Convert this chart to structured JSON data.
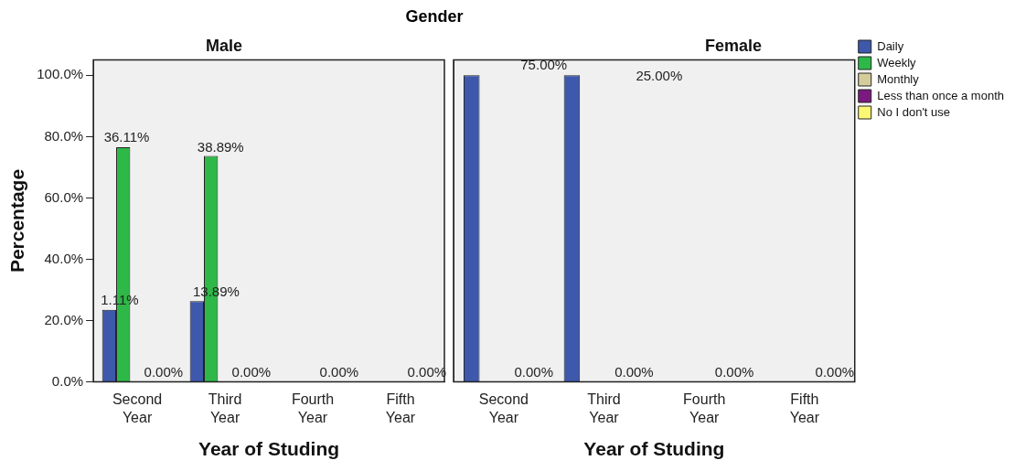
{
  "chart_data": [
    {
      "type": "bar",
      "subtitle": "Gender",
      "title": "Male",
      "xlabel": "Year of Studing",
      "ylabel": "Percentage",
      "categories": [
        "Second Year",
        "Third Year",
        "Fourth Year",
        "Fifth Year"
      ],
      "ylim": [
        0,
        105
      ],
      "yticks": [
        {
          "value": 0,
          "label": "0.0%"
        },
        {
          "value": 20,
          "label": "20.0%"
        },
        {
          "value": 40,
          "label": "40.0%"
        },
        {
          "value": 60,
          "label": "60.0%"
        },
        {
          "value": 80,
          "label": "80.0%"
        },
        {
          "value": 100,
          "label": "100.0%"
        }
      ],
      "grid": false,
      "legend": false,
      "series": [
        {
          "color": "#3e58ac",
          "values": [
            23.5,
            26.3,
            null,
            null
          ]
        },
        {
          "color": "#2eb848",
          "values": [
            76.5,
            73.7,
            null,
            null
          ]
        },
        {
          "color": "#d4cc9a",
          "values": [
            null,
            null,
            null,
            null
          ]
        },
        {
          "color": "#7b1a7e",
          "values": [
            null,
            null,
            null,
            null
          ]
        },
        {
          "color": "#fbf873",
          "values": [
            0,
            0,
            0,
            0
          ]
        }
      ],
      "annotations": [
        "1.11%",
        "36.11%",
        "0.00%",
        "13.89%",
        "38.89%",
        "0.00%",
        "0.00%",
        "0.00%"
      ]
    },
    {
      "type": "bar",
      "title": "Female",
      "xlabel": "Year of Studing",
      "categories": [
        "Second Year",
        "Third Year",
        "Fourth Year",
        "Fifth Year"
      ],
      "ylim": [
        0,
        105
      ],
      "tick_labels": "x",
      "grid": false,
      "legend": "right",
      "series": [
        {
          "name": "Daily",
          "color": "#3e58ac",
          "values": [
            100,
            100,
            null,
            null
          ]
        },
        {
          "name": "Weekly",
          "color": "#2eb848",
          "values": [
            null,
            null,
            null,
            null
          ]
        },
        {
          "name": "Monthly",
          "color": "#d4cc9a",
          "values": [
            null,
            null,
            null,
            null
          ]
        },
        {
          "name": "Less than once a month",
          "color": "#7b1a7e",
          "values": [
            null,
            null,
            null,
            null
          ]
        },
        {
          "name": "No I don't use",
          "color": "#fbf873",
          "values": [
            0,
            0,
            0,
            0
          ]
        }
      ],
      "annotations": [
        "75.00%",
        "0.00%",
        "25.00%",
        "0.00%",
        "0.00%",
        "0.00%"
      ]
    }
  ]
}
